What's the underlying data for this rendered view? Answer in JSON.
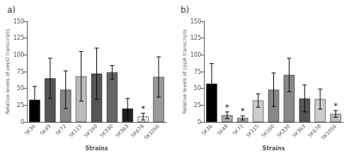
{
  "chart_data": [
    {
      "type": "bar",
      "title": "a)",
      "ylabel": "Relative levels of pepO transcripts",
      "xlabel": "Strains",
      "categories": [
        "SK36",
        "SK49",
        "SK72",
        "SK115",
        "SK160",
        "SK330",
        "SK363",
        "SK678",
        "SK1056"
      ],
      "values": [
        33,
        65,
        48,
        68,
        72,
        74,
        20,
        8,
        67
      ],
      "errors": [
        20,
        30,
        28,
        37,
        38,
        10,
        15,
        5,
        30
      ],
      "colors": [
        "#000000",
        "#555555",
        "#888888",
        "#bbbbbb",
        "#555555",
        "#666666",
        "#222222",
        "#f0f0f0",
        "#999999"
      ],
      "annotations": [
        {
          "text": "*",
          "category": "SK678"
        }
      ],
      "ylim": [
        0,
        150
      ],
      "yticks": [
        0,
        25,
        50,
        75,
        100,
        125,
        150
      ],
      "grid": false
    },
    {
      "type": "bar",
      "title": "b)",
      "ylabel": "Relative levels of cppA transcripts",
      "xlabel": "Strains",
      "categories": [
        "SK36",
        "SK49",
        "SK72",
        "SK115",
        "SK160",
        "SK330",
        "SK363",
        "SK678",
        "SK1056"
      ],
      "values": [
        57,
        10,
        6,
        32,
        48,
        70,
        35,
        34,
        12
      ],
      "errors": [
        30,
        5,
        3,
        10,
        25,
        25,
        20,
        15,
        5
      ],
      "colors": [
        "#000000",
        "#aaaaaa",
        "#aaaaaa",
        "#cccccc",
        "#888888",
        "#888888",
        "#555555",
        "#cccccc",
        "#bbbbbb"
      ],
      "annotations": [
        {
          "text": "*",
          "category": "SK49"
        },
        {
          "text": "*",
          "category": "SK72"
        },
        {
          "text": "*",
          "category": "SK1056"
        }
      ],
      "ylim": [
        0,
        150
      ],
      "yticks": [
        0,
        25,
        50,
        75,
        100,
        125,
        150
      ],
      "grid": false
    }
  ]
}
